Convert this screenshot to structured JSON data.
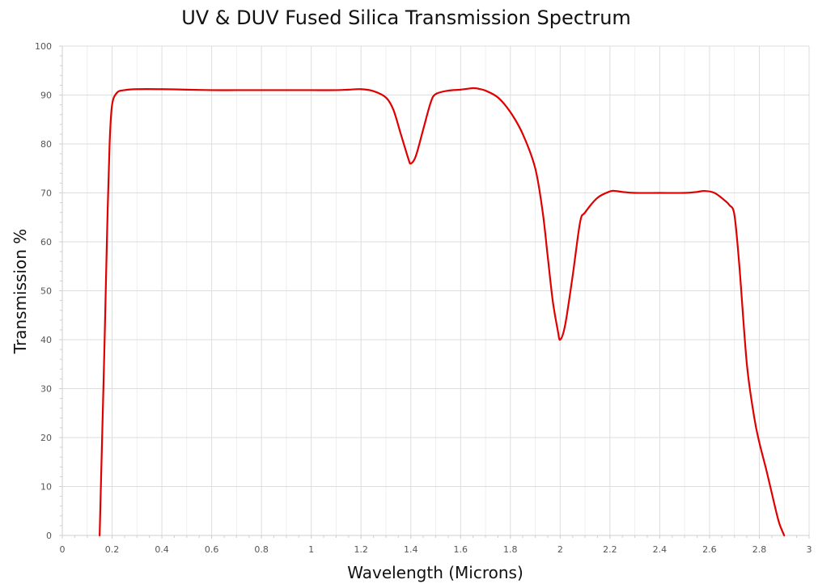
{
  "chart_data": {
    "type": "line",
    "title": "UV & DUV Fused Silica Transmission Spectrum",
    "xlabel": "Wavelength (Microns)",
    "ylabel": "Transmission %",
    "xlim": [
      0,
      3
    ],
    "ylim": [
      0,
      100
    ],
    "x_ticks": [
      0,
      0.2,
      0.4,
      0.6,
      0.8,
      1,
      1.2,
      1.4,
      1.6,
      1.8,
      2,
      2.2,
      2.4,
      2.6,
      2.8,
      3
    ],
    "x_tick_labels": [
      "0",
      "0.2",
      "0.4",
      "0.6",
      "0.8",
      "1",
      "1.2",
      "1.4",
      "1.6",
      "1.8",
      "2",
      "2.2",
      "2.4",
      "2.6",
      "2.8",
      "3"
    ],
    "y_ticks": [
      0,
      10,
      20,
      30,
      40,
      50,
      60,
      70,
      80,
      90,
      100
    ],
    "y_tick_labels": [
      "0",
      "10",
      "20",
      "30",
      "40",
      "50",
      "60",
      "70",
      "80",
      "90",
      "100"
    ],
    "grid": true,
    "legend": "none",
    "colors": {
      "line": "#e00000",
      "grid": "#dddddd",
      "axis": "#cfcfcf",
      "tick_text": "#555555"
    },
    "series": [
      {
        "x": [
          0.15,
          0.16,
          0.17,
          0.18,
          0.19,
          0.2,
          0.22,
          0.25,
          0.3,
          0.4,
          0.5,
          0.6,
          0.7,
          0.8,
          0.9,
          1.0,
          1.1,
          1.15,
          1.2,
          1.25,
          1.3,
          1.33,
          1.36,
          1.39,
          1.4,
          1.42,
          1.45,
          1.48,
          1.5,
          1.55,
          1.6,
          1.65,
          1.67,
          1.7,
          1.75,
          1.8,
          1.85,
          1.9,
          1.93,
          1.95,
          1.97,
          1.99,
          2.0,
          2.02,
          2.05,
          2.08,
          2.1,
          2.15,
          2.2,
          2.22,
          2.25,
          2.3,
          2.4,
          2.5,
          2.55,
          2.58,
          2.62,
          2.66,
          2.68,
          2.7,
          2.72,
          2.75,
          2.78,
          2.8,
          2.83,
          2.86,
          2.88,
          2.9
        ],
        "y": [
          0,
          20,
          40,
          62,
          80,
          88,
          90.5,
          91,
          91.2,
          91.2,
          91.1,
          91,
          91,
          91,
          91,
          91,
          91,
          91.1,
          91.2,
          90.8,
          89.5,
          87,
          82,
          77,
          76,
          77.5,
          83,
          88.5,
          90.2,
          90.9,
          91.1,
          91.4,
          91.3,
          90.9,
          89.5,
          86.5,
          82,
          75,
          66,
          57,
          48,
          42,
          40,
          43,
          53,
          64,
          66,
          69,
          70.3,
          70.4,
          70.2,
          70,
          70,
          70,
          70.2,
          70.4,
          70,
          68.5,
          67.5,
          65.5,
          55,
          35,
          24,
          19,
          13,
          6.5,
          2.5,
          0
        ]
      }
    ]
  }
}
